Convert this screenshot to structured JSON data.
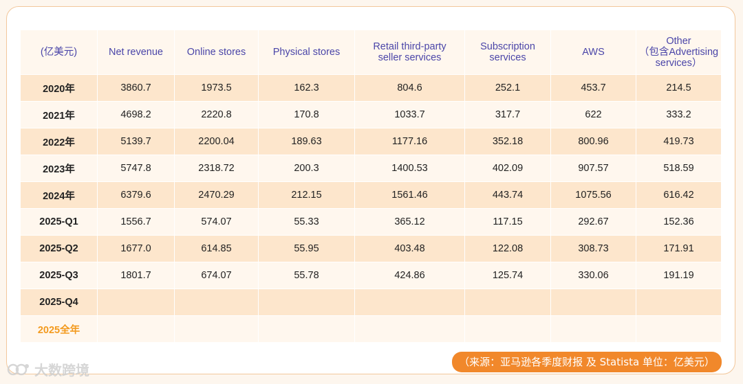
{
  "table": {
    "headers": [
      "(亿美元)",
      "Net revenue",
      "Online stores",
      "Physical stores",
      "Retail third-party\nseller services",
      "Subscription\nservices",
      "AWS",
      "Other\n（包含Advertising\nservices）"
    ],
    "rows": [
      {
        "year": "2020年",
        "values": [
          "3860.7",
          "1973.5",
          "162.3",
          "804.6",
          "252.1",
          "453.7",
          "214.5"
        ]
      },
      {
        "year": "2021年",
        "values": [
          "4698.2",
          "2220.8",
          "170.8",
          "1033.7",
          "317.7",
          "622",
          "333.2"
        ]
      },
      {
        "year": "2022年",
        "values": [
          "5139.7",
          "2200.04",
          "189.63",
          "1177.16",
          "352.18",
          "800.96",
          "419.73"
        ]
      },
      {
        "year": "2023年",
        "values": [
          "5747.8",
          "2318.72",
          "200.3",
          "1400.53",
          "402.09",
          "907.57",
          "518.59"
        ]
      },
      {
        "year": "2024年",
        "values": [
          "6379.6",
          "2470.29",
          "212.15",
          "1561.46",
          "443.74",
          "1075.56",
          "616.42"
        ]
      },
      {
        "year": "2025-Q1",
        "values": [
          "1556.7",
          "574.07",
          "55.33",
          "365.12",
          "117.15",
          "292.67",
          "152.36"
        ]
      },
      {
        "year": "2025-Q2",
        "values": [
          "1677.0",
          "614.85",
          "55.95",
          "403.48",
          "122.08",
          "308.73",
          "171.91"
        ]
      },
      {
        "year": "2025-Q3",
        "values": [
          "1801.7",
          "674.07",
          "55.78",
          "424.86",
          "125.74",
          "330.06",
          "191.19"
        ]
      },
      {
        "year": "2025-Q4",
        "values": [
          "",
          "",
          "",
          "",
          "",
          "",
          ""
        ]
      },
      {
        "year": "2025全年",
        "values": [
          "",
          "",
          "",
          "",
          "",
          "",
          ""
        ],
        "highlight": true
      }
    ]
  },
  "footer": {
    "source_note": "（来源：亚马逊各季度财报 及 Statista 单位：亿美元）"
  },
  "watermark": {
    "text": "大数跨境",
    "icon": "brand-logo-icon"
  },
  "colors": {
    "header_text": "#4a45a8",
    "row_dark": "#fde6cc",
    "row_light": "#fff7ee",
    "accent": "#f1882b",
    "highlight_text": "#f39a1e"
  }
}
